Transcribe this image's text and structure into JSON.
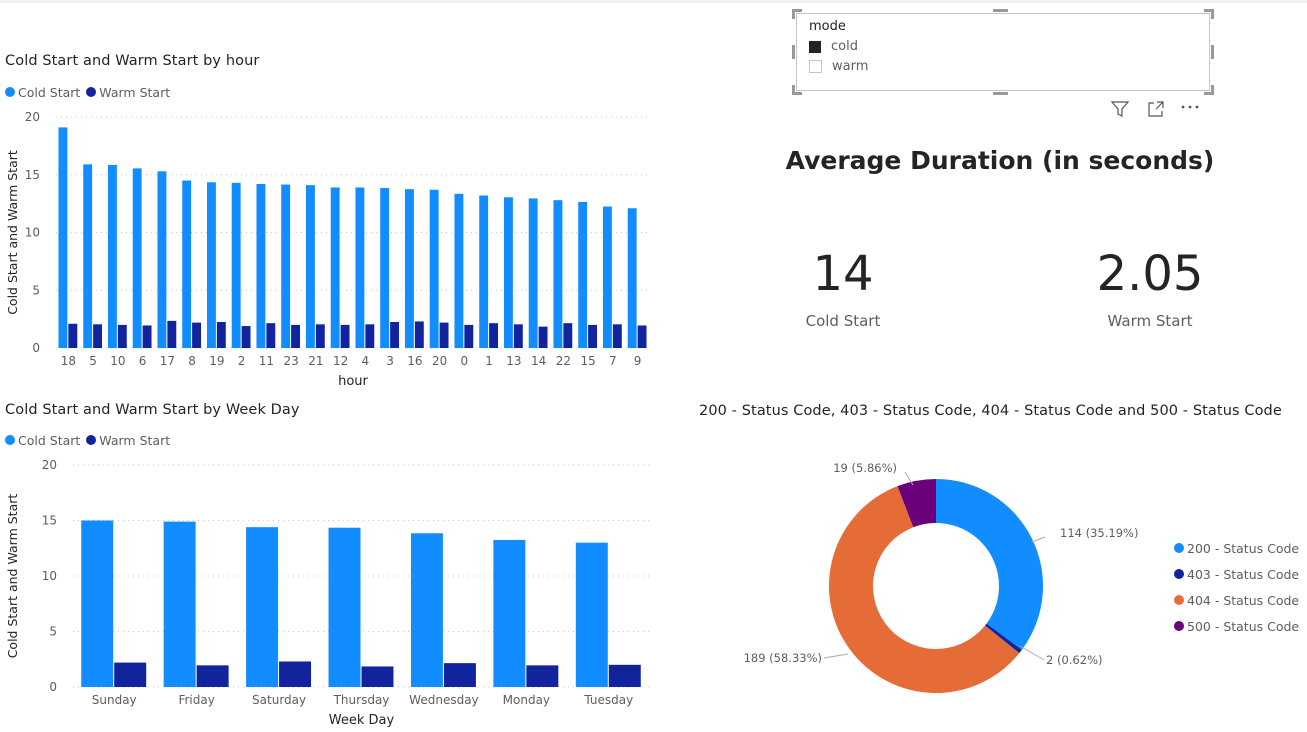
{
  "colors": {
    "cold": "#118DFF",
    "warm": "#12239E",
    "s200": "#118DFF",
    "s403": "#12239E",
    "s404": "#E66C37",
    "s500": "#6B007B"
  },
  "slicer": {
    "title": "mode",
    "items": [
      {
        "label": "cold",
        "checked": true
      },
      {
        "label": "warm",
        "checked": false
      }
    ],
    "icons": [
      "filter-icon",
      "focus-mode-icon",
      "more-options-icon"
    ]
  },
  "kpi": {
    "title": "Average Duration (in seconds)",
    "cold_value": "14",
    "cold_label": "Cold Start",
    "warm_value": "2.05",
    "warm_label": "Warm Start"
  },
  "chart_data": [
    {
      "type": "bar",
      "title": "Cold Start and Warm Start by hour",
      "xlabel": "hour",
      "ylabel": "Cold Start and Warm Start",
      "ylim": [
        0,
        20
      ],
      "yticks": [
        "0",
        "5",
        "10",
        "15",
        "20"
      ],
      "grid": true,
      "legend": "top-left",
      "categories": [
        "18",
        "5",
        "10",
        "6",
        "17",
        "8",
        "19",
        "2",
        "11",
        "23",
        "21",
        "12",
        "4",
        "3",
        "16",
        "20",
        "0",
        "1",
        "13",
        "14",
        "22",
        "15",
        "7",
        "9"
      ],
      "series": [
        {
          "name": "Cold Start",
          "values": [
            19.1,
            15.9,
            15.85,
            15.55,
            15.3,
            14.5,
            14.35,
            14.3,
            14.2,
            14.15,
            14.1,
            13.9,
            13.9,
            13.85,
            13.75,
            13.7,
            13.35,
            13.2,
            13.05,
            12.95,
            12.8,
            12.65,
            12.25,
            12.1
          ]
        },
        {
          "name": "Warm Start",
          "values": [
            2.1,
            2.05,
            2.0,
            1.95,
            2.35,
            2.2,
            2.25,
            1.9,
            2.15,
            2.0,
            2.05,
            2.0,
            2.05,
            2.25,
            2.3,
            2.2,
            2.0,
            2.15,
            2.05,
            1.85,
            2.15,
            2.0,
            2.05,
            1.95
          ]
        }
      ]
    },
    {
      "type": "bar",
      "title": "Cold Start and Warm Start by Week Day",
      "xlabel": "Week Day",
      "ylabel": "Cold Start and Warm Start",
      "ylim": [
        0,
        20
      ],
      "yticks": [
        "0",
        "5",
        "10",
        "15",
        "20"
      ],
      "grid": true,
      "legend": "top-left",
      "categories": [
        "Sunday",
        "Friday",
        "Saturday",
        "Thursday",
        "Wednesday",
        "Monday",
        "Tuesday"
      ],
      "series": [
        {
          "name": "Cold Start",
          "values": [
            15.0,
            14.9,
            14.4,
            14.35,
            13.85,
            13.25,
            13.0
          ]
        },
        {
          "name": "Warm Start",
          "values": [
            2.2,
            1.95,
            2.3,
            1.85,
            2.15,
            1.95,
            2.0
          ]
        }
      ]
    },
    {
      "type": "pie",
      "donut": true,
      "title": "200 - Status Code, 403 - Status Code, 404 - Status Code and 500 - Status Code",
      "legend": "right",
      "slices": [
        {
          "name": "200 - Status Code",
          "value": 114,
          "label": "114 (35.19%)"
        },
        {
          "name": "403 - Status Code",
          "value": 2,
          "label": "2 (0.62%)"
        },
        {
          "name": "404 - Status Code",
          "value": 189,
          "label": "189 (58.33%)"
        },
        {
          "name": "500 - Status Code",
          "value": 19,
          "label": "19 (5.86%)"
        }
      ]
    }
  ]
}
